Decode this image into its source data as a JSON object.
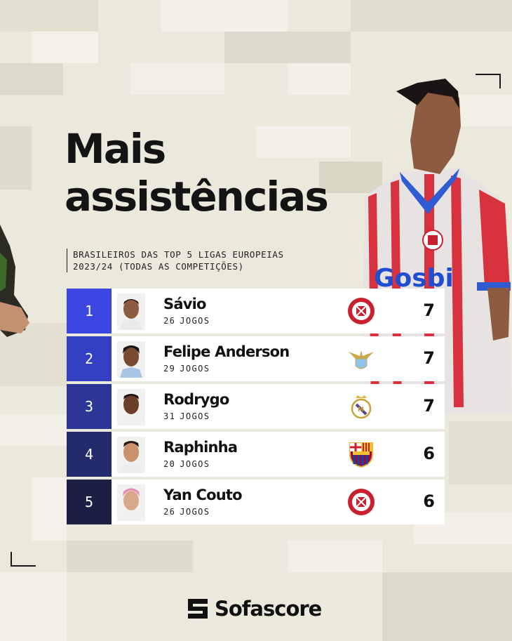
{
  "title": {
    "line1": "Mais",
    "line2": "assistências"
  },
  "subtitle": {
    "line1": "BRASILEIROS DAS TOP 5 LIGAS EUROPEIAS",
    "line2": "2023/24 (TODAS AS COMPETIÇÕES)"
  },
  "players": [
    {
      "rank": "1",
      "name": "Sávio",
      "games_count": "26",
      "games_label": "JOGOS",
      "club_icon": "girona-crest-icon",
      "value": "7",
      "rank_color": "#3c46e0"
    },
    {
      "rank": "2",
      "name": "Felipe Anderson",
      "games_count": "29",
      "games_label": "JOGOS",
      "club_icon": "lazio-crest-icon",
      "value": "7",
      "rank_color": "#3440c2"
    },
    {
      "rank": "3",
      "name": "Rodrygo",
      "games_count": "31",
      "games_label": "JOGOS",
      "club_icon": "real-madrid-crest-icon",
      "value": "7",
      "rank_color": "#2c3697"
    },
    {
      "rank": "4",
      "name": "Raphinha",
      "games_count": "20",
      "games_label": "JOGOS",
      "club_icon": "barcelona-crest-icon",
      "value": "6",
      "rank_color": "#242b6d"
    },
    {
      "rank": "5",
      "name": "Yan Couto",
      "games_count": "26",
      "games_label": "JOGOS",
      "club_icon": "girona-crest-icon",
      "value": "6",
      "rank_color": "#1b1f44"
    }
  ],
  "jersey_sponsor": "Gosbi",
  "brand": {
    "name": "Sofascore"
  }
}
